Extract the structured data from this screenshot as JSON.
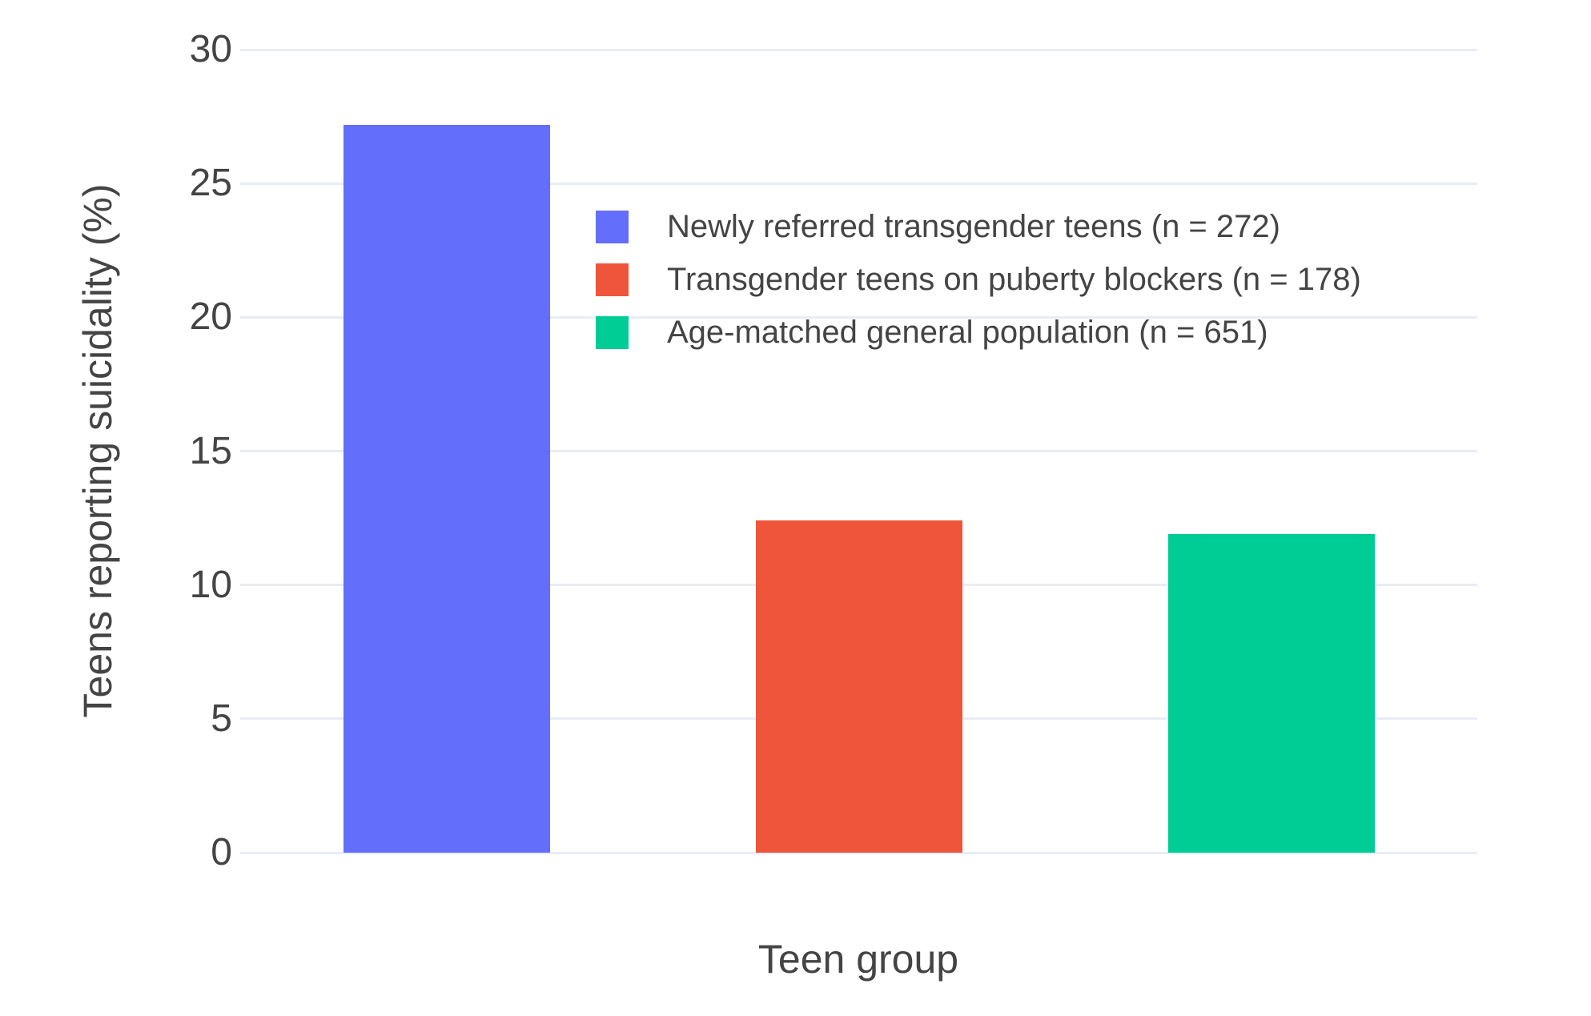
{
  "chart_data": {
    "type": "bar",
    "categories": [
      "Newly referred transgender teens (n = 272)",
      "Transgender teens on puberty blockers (n = 178)",
      "Age-matched general population (n = 651)"
    ],
    "values": [
      27.2,
      12.4,
      11.9
    ],
    "title": "",
    "xlabel": "Teen group",
    "ylabel": "Teens reporting suicidality (%)",
    "ylim": [
      0,
      30
    ],
    "yticks": [
      0,
      5,
      10,
      15,
      20,
      25,
      30
    ],
    "grid": true,
    "legend_position": "inside-upper-center",
    "legend": [
      {
        "label": "Newly referred transgender teens (n = 272)",
        "color": "#636EFA"
      },
      {
        "label": "Transgender teens on puberty blockers (n = 178)",
        "color": "#EF553B"
      },
      {
        "label": "Age-matched general population (n = 651)",
        "color": "#00CC96"
      }
    ]
  },
  "colors": {
    "background": "#FFFFFF",
    "grid": "#E8EDF5",
    "text": "#444444",
    "bar_blue": "#636EFA",
    "bar_red": "#EF553B",
    "bar_green": "#00CC96"
  }
}
